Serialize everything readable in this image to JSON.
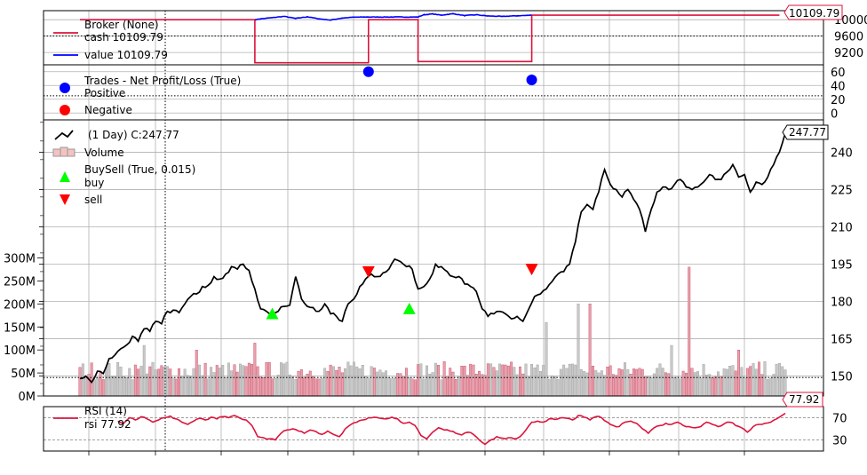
{
  "chart_data": {
    "type": "line",
    "panels": [
      {
        "id": "broker",
        "title": "",
        "yticks": [
          9200,
          9600,
          10000
        ],
        "ylim": [
          8900,
          10220
        ],
        "legend": [
          {
            "label": "Broker (None)",
            "color": "#dc143c"
          },
          {
            "label": "cash 10109.79",
            "color": ""
          },
          {
            "label": "value 10109.79",
            "color": "#0000ff"
          }
        ],
        "last_value_label": "10109.79",
        "series": [
          {
            "key": "cash",
            "color": "#dc143c",
            "points": [
              [
                0,
                10000
              ],
              [
                60,
                10000
              ],
              [
                60,
                8950
              ],
              [
                99,
                8950
              ],
              [
                99,
                10000
              ],
              [
                116,
                10000
              ],
              [
                116,
                8980
              ],
              [
                155,
                8980
              ],
              [
                155,
                10109.79
              ],
              [
                240,
                10109.79
              ]
            ]
          },
          {
            "key": "value",
            "color": "#0000ff",
            "points": [
              [
                60,
                10000
              ],
              [
                62,
                10020
              ],
              [
                66,
                10050
              ],
              [
                70,
                10080
              ],
              [
                74,
                10030
              ],
              [
                78,
                10070
              ],
              [
                82,
                10020
              ],
              [
                86,
                9990
              ],
              [
                90,
                10040
              ],
              [
                94,
                10060
              ],
              [
                99,
                10065
              ],
              [
                116,
                10065
              ],
              [
                118,
                10120
              ],
              [
                121,
                10140
              ],
              [
                124,
                10110
              ],
              [
                128,
                10145
              ],
              [
                132,
                10100
              ],
              [
                136,
                10120
              ],
              [
                140,
                10090
              ],
              [
                145,
                10080
              ],
              [
                150,
                10095
              ],
              [
                155,
                10109.79
              ]
            ]
          }
        ]
      },
      {
        "id": "trades",
        "title": "",
        "yticks": [
          0,
          20,
          40,
          60
        ],
        "ylim": [
          -10,
          70
        ],
        "legend": [
          {
            "label": "Trades - Net Profit/Loss (True)",
            "color": ""
          },
          {
            "label": "Positive",
            "color": "#0000ff"
          },
          {
            "label": "Negative",
            "color": "#ff0000"
          }
        ],
        "points": [
          {
            "x": 99,
            "y": 60,
            "kind": "positive"
          },
          {
            "x": 155,
            "y": 48,
            "kind": "positive"
          }
        ]
      },
      {
        "id": "price",
        "title": "",
        "yticks": [
          150,
          165,
          180,
          195,
          210,
          225,
          240
        ],
        "ylim": [
          142,
          253
        ],
        "volume_ticks": [
          "0M",
          "50M",
          "100M",
          "150M",
          "200M",
          "250M",
          "300M"
        ],
        "volume_ylim": [
          0,
          600
        ],
        "legend": [
          {
            "label": "(1 Day) C:247.77",
            "color": "#000000"
          },
          {
            "label": "Volume",
            "color": ""
          },
          {
            "label": "BuySell (True, 0.015)",
            "color": ""
          },
          {
            "label": "buy",
            "color": "#00ff00"
          },
          {
            "label": "sell",
            "color": "#ff0000"
          }
        ],
        "last_value_label": "247.77",
        "close_anchors": [
          [
            0,
            149
          ],
          [
            2,
            150
          ],
          [
            4,
            147.5
          ],
          [
            6,
            152
          ],
          [
            8,
            151
          ],
          [
            10,
            157
          ],
          [
            12,
            158.5
          ],
          [
            14,
            161
          ],
          [
            16,
            162.5
          ],
          [
            18,
            166
          ],
          [
            20,
            164
          ],
          [
            22,
            169
          ],
          [
            24,
            168
          ],
          [
            26,
            172
          ],
          [
            28,
            171
          ],
          [
            30,
            176
          ],
          [
            32,
            176.5
          ],
          [
            34,
            175.5
          ],
          [
            36,
            179
          ],
          [
            38,
            182
          ],
          [
            40,
            183
          ],
          [
            42,
            186
          ],
          [
            44,
            186.5
          ],
          [
            46,
            190
          ],
          [
            48,
            189
          ],
          [
            50,
            191
          ],
          [
            52,
            194
          ],
          [
            54,
            193
          ],
          [
            56,
            195
          ],
          [
            58,
            192.5
          ],
          [
            60,
            185
          ],
          [
            62,
            177
          ],
          [
            64,
            176
          ],
          [
            66,
            175
          ],
          [
            68,
            176
          ],
          [
            70,
            178
          ],
          [
            72,
            178.5
          ],
          [
            74,
            190
          ],
          [
            76,
            181
          ],
          [
            78,
            178
          ],
          [
            80,
            177.5
          ],
          [
            82,
            176
          ],
          [
            84,
            179
          ],
          [
            86,
            175
          ],
          [
            88,
            174
          ],
          [
            90,
            172
          ],
          [
            92,
            179
          ],
          [
            94,
            181
          ],
          [
            96,
            186
          ],
          [
            98,
            189
          ],
          [
            100,
            191
          ],
          [
            102,
            190
          ],
          [
            104,
            191.5
          ],
          [
            106,
            193
          ],
          [
            108,
            197
          ],
          [
            110,
            196
          ],
          [
            112,
            194
          ],
          [
            114,
            193
          ],
          [
            116,
            185
          ],
          [
            118,
            186
          ],
          [
            120,
            189
          ],
          [
            122,
            195
          ],
          [
            124,
            194
          ],
          [
            126,
            192
          ],
          [
            128,
            190
          ],
          [
            130,
            190
          ],
          [
            132,
            187
          ],
          [
            134,
            186
          ],
          [
            136,
            184
          ],
          [
            138,
            177
          ],
          [
            140,
            174
          ],
          [
            142,
            175
          ],
          [
            144,
            176
          ],
          [
            146,
            175
          ],
          [
            148,
            173
          ],
          [
            150,
            174
          ],
          [
            152,
            172
          ],
          [
            154,
            177
          ],
          [
            156,
            182
          ],
          [
            158,
            183
          ],
          [
            160,
            185
          ],
          [
            162,
            188
          ],
          [
            164,
            191
          ],
          [
            166,
            192
          ],
          [
            168,
            195
          ],
          [
            170,
            204
          ],
          [
            172,
            216
          ],
          [
            174,
            219
          ],
          [
            176,
            217
          ],
          [
            178,
            224
          ],
          [
            180,
            233
          ],
          [
            182,
            227
          ],
          [
            184,
            225
          ],
          [
            186,
            222
          ],
          [
            188,
            225
          ],
          [
            190,
            221
          ],
          [
            192,
            217
          ],
          [
            194,
            208
          ],
          [
            196,
            217
          ],
          [
            198,
            224
          ],
          [
            200,
            226
          ],
          [
            202,
            225
          ],
          [
            204,
            227
          ],
          [
            206,
            229
          ],
          [
            208,
            226
          ],
          [
            210,
            225
          ],
          [
            212,
            226
          ],
          [
            214,
            228
          ],
          [
            216,
            231
          ],
          [
            218,
            229
          ],
          [
            220,
            229
          ],
          [
            222,
            232
          ],
          [
            224,
            235
          ],
          [
            226,
            230
          ],
          [
            228,
            231
          ],
          [
            230,
            224
          ],
          [
            232,
            228
          ],
          [
            234,
            227
          ],
          [
            236,
            230
          ],
          [
            238,
            235
          ],
          [
            240,
            240
          ],
          [
            242,
            247.77
          ]
        ],
        "markers": [
          {
            "x": 66,
            "value": 175,
            "kind": "buy"
          },
          {
            "x": 99,
            "value": 192,
            "kind": "sell"
          },
          {
            "x": 113,
            "value": 177,
            "kind": "buy"
          },
          {
            "x": 155,
            "value": 193,
            "kind": "sell"
          }
        ]
      },
      {
        "id": "rsi",
        "title": "",
        "yticks": [
          30,
          70
        ],
        "ylim": [
          10,
          90
        ],
        "legend": [
          {
            "label": "RSI (14)",
            "color": "#dc143c"
          },
          {
            "label": "rsi 77.92",
            "color": ""
          }
        ],
        "last_value_label": "77.92",
        "anchors": [
          [
            0,
            null
          ],
          [
            13,
            64
          ],
          [
            15,
            60
          ],
          [
            17,
            70
          ],
          [
            19,
            66
          ],
          [
            21,
            72
          ],
          [
            23,
            68
          ],
          [
            25,
            62
          ],
          [
            27,
            66
          ],
          [
            29,
            70
          ],
          [
            31,
            73
          ],
          [
            33,
            68
          ],
          [
            35,
            62
          ],
          [
            37,
            58
          ],
          [
            39,
            64
          ],
          [
            41,
            69
          ],
          [
            43,
            66
          ],
          [
            45,
            71
          ],
          [
            47,
            68
          ],
          [
            49,
            72
          ],
          [
            51,
            70
          ],
          [
            53,
            74
          ],
          [
            55,
            69
          ],
          [
            57,
            66
          ],
          [
            59,
            56
          ],
          [
            61,
            36
          ],
          [
            63,
            34
          ],
          [
            65,
            32
          ],
          [
            67,
            30
          ],
          [
            69,
            42
          ],
          [
            71,
            48
          ],
          [
            73,
            50
          ],
          [
            75,
            46
          ],
          [
            77,
            42
          ],
          [
            79,
            48
          ],
          [
            81,
            45
          ],
          [
            83,
            40
          ],
          [
            85,
            46
          ],
          [
            87,
            40
          ],
          [
            89,
            36
          ],
          [
            91,
            50
          ],
          [
            93,
            58
          ],
          [
            95,
            62
          ],
          [
            97,
            66
          ],
          [
            99,
            70
          ],
          [
            101,
            71
          ],
          [
            103,
            69
          ],
          [
            105,
            68
          ],
          [
            107,
            71
          ],
          [
            109,
            68
          ],
          [
            111,
            60
          ],
          [
            113,
            62
          ],
          [
            115,
            56
          ],
          [
            117,
            38
          ],
          [
            119,
            32
          ],
          [
            121,
            44
          ],
          [
            123,
            52
          ],
          [
            125,
            48
          ],
          [
            127,
            46
          ],
          [
            129,
            42
          ],
          [
            131,
            39
          ],
          [
            133,
            44
          ],
          [
            135,
            40
          ],
          [
            137,
            30
          ],
          [
            139,
            22
          ],
          [
            141,
            30
          ],
          [
            143,
            36
          ],
          [
            145,
            33
          ],
          [
            147,
            34
          ],
          [
            149,
            32
          ],
          [
            151,
            36
          ],
          [
            153,
            48
          ],
          [
            155,
            62
          ],
          [
            157,
            64
          ],
          [
            159,
            62
          ],
          [
            161,
            68
          ],
          [
            163,
            67
          ],
          [
            165,
            70
          ],
          [
            167,
            69
          ],
          [
            169,
            66
          ],
          [
            171,
            74
          ],
          [
            173,
            71
          ],
          [
            175,
            66
          ],
          [
            177,
            72
          ],
          [
            179,
            70
          ],
          [
            181,
            62
          ],
          [
            183,
            56
          ],
          [
            185,
            54
          ],
          [
            187,
            62
          ],
          [
            189,
            64
          ],
          [
            191,
            60
          ],
          [
            193,
            50
          ],
          [
            195,
            42
          ],
          [
            197,
            52
          ],
          [
            199,
            56
          ],
          [
            201,
            60
          ],
          [
            203,
            58
          ],
          [
            205,
            62
          ],
          [
            207,
            56
          ],
          [
            209,
            54
          ],
          [
            211,
            52
          ],
          [
            213,
            54
          ],
          [
            215,
            62
          ],
          [
            217,
            58
          ],
          [
            219,
            54
          ],
          [
            221,
            59
          ],
          [
            223,
            62
          ],
          [
            225,
            56
          ],
          [
            227,
            52
          ],
          [
            229,
            44
          ],
          [
            231,
            54
          ],
          [
            233,
            58
          ],
          [
            235,
            60
          ],
          [
            237,
            62
          ],
          [
            239,
            68
          ],
          [
            242,
            77.92
          ]
        ]
      }
    ]
  }
}
